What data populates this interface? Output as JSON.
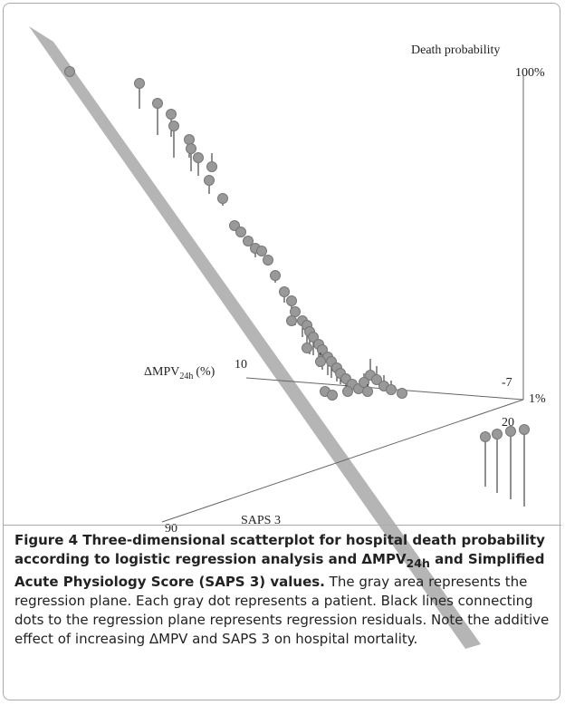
{
  "figure": {
    "axis_labels": {
      "death_probability": "Death probability",
      "mpv": {
        "main": "ΔMPV",
        "sub": "24h",
        "unit": "(%)"
      },
      "saps": "SAPS 3"
    },
    "ticks": {
      "p_max": "100%",
      "p_min": "1%",
      "mpv_max": "10",
      "mpv_min": "-7",
      "saps_min": "20",
      "saps_max": "90"
    }
  },
  "caption": {
    "bold": [
      "Figure 4 Three-dimensional scatterplot for hospital death probability according to logistic regression analysis and ΔMPV",
      "24h",
      " and Simplified Acute Physiology Score (SAPS 3) values."
    ],
    "text": "The gray area represents the regression plane. Each gray dot represents a patient. Black lines connecting dots to the regression plane represents regression residuals. Note the additive effect of increasing ΔMPV and SAPS 3 on hospital mortality."
  }
}
